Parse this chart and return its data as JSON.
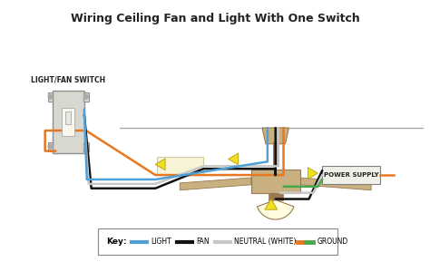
{
  "title": "Wiring Ceiling Fan and Light With One Switch",
  "title_fontsize": 9,
  "bg_color": "#ffffff",
  "fig_width": 4.74,
  "fig_height": 2.89,
  "switch_label": "LIGHT/FAN SWITCH",
  "power_label": "POWER SUPPLY",
  "colors": {
    "light_blue": "#4fa0d8",
    "fan_black": "#111111",
    "neutral_white": "#c8c8c8",
    "ground_orange": "#e87820",
    "ground_green": "#4aaa4a",
    "tan": "#c8b080",
    "dark_tan": "#9a7850",
    "yellow": "#f0e020",
    "yellow_edge": "#b0a010",
    "cream": "#f8f4d8",
    "cream_edge": "#d0c898",
    "orange_wire": "#e87820",
    "switch_plate": "#d8d8d0",
    "switch_edge": "#909090",
    "ps_fill": "#f0f0e8",
    "ps_edge": "#808080"
  }
}
